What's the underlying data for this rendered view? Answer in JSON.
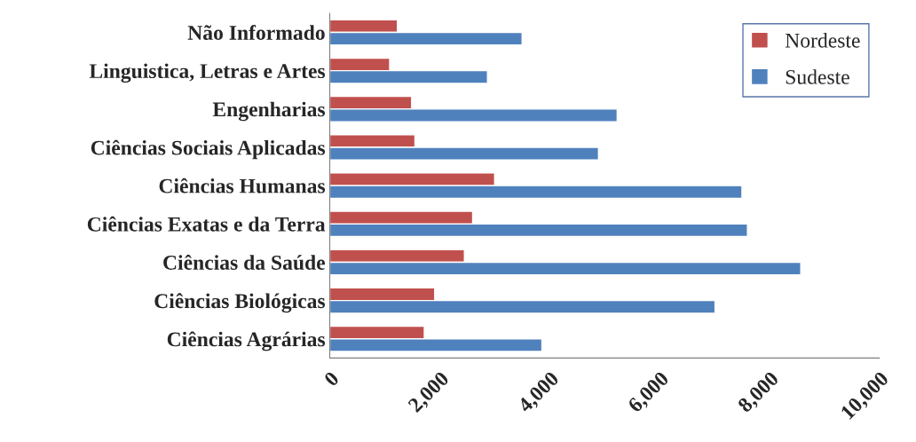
{
  "chart_data": {
    "type": "bar",
    "orientation": "horizontal",
    "categories": [
      "Não Informado",
      "Linguistica, Letras e Artes",
      "Engenharias",
      "Ciências Sociais Aplicadas",
      "Ciências Humanas",
      "Ciências Exatas e da Terra",
      "Ciências da Saúde",
      "Ciências Biológicas",
      "Ciências Agrárias"
    ],
    "series": [
      {
        "name": "Nordeste",
        "color": "#c0504d",
        "values": [
          1230,
          1090,
          1490,
          1550,
          3000,
          2600,
          2450,
          1910,
          1720
        ]
      },
      {
        "name": "Sudeste",
        "color": "#4f81bd",
        "values": [
          3500,
          2870,
          5230,
          4890,
          7500,
          7600,
          8570,
          7010,
          3860
        ]
      }
    ],
    "xlim": [
      0,
      10000
    ],
    "xticks": [
      {
        "value": 0,
        "label": "0"
      },
      {
        "value": 2000,
        "label": "2,000"
      },
      {
        "value": 4000,
        "label": "4,000"
      },
      {
        "value": 6000,
        "label": "6,000"
      },
      {
        "value": 8000,
        "label": "8,000"
      },
      {
        "value": 10000,
        "label": "10,000"
      }
    ],
    "grid": false,
    "legend": "top right"
  }
}
